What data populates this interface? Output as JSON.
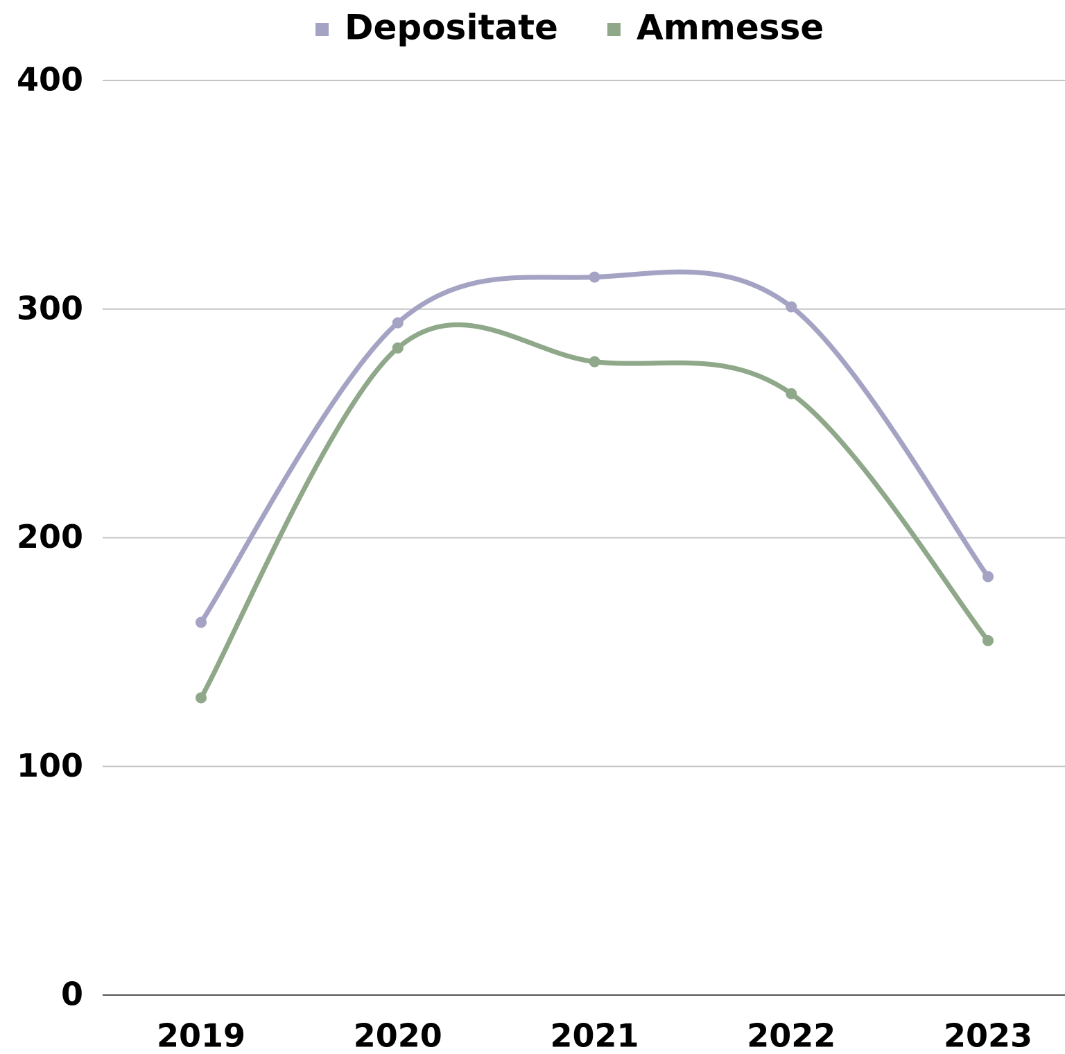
{
  "chart_data": {
    "type": "line",
    "categories": [
      "2019",
      "2020",
      "2021",
      "2022",
      "2023"
    ],
    "series": [
      {
        "name": "Depositate",
        "color": "#a5a3c3",
        "values": [
          163,
          294,
          314,
          301,
          183
        ]
      },
      {
        "name": "Ammesse",
        "color": "#8fa88a",
        "values": [
          130,
          283,
          277,
          263,
          155
        ]
      }
    ],
    "ylim": [
      0,
      400
    ],
    "yticks": [
      0,
      100,
      200,
      300,
      400
    ],
    "grid": true,
    "smooth": true,
    "legend": "top"
  }
}
